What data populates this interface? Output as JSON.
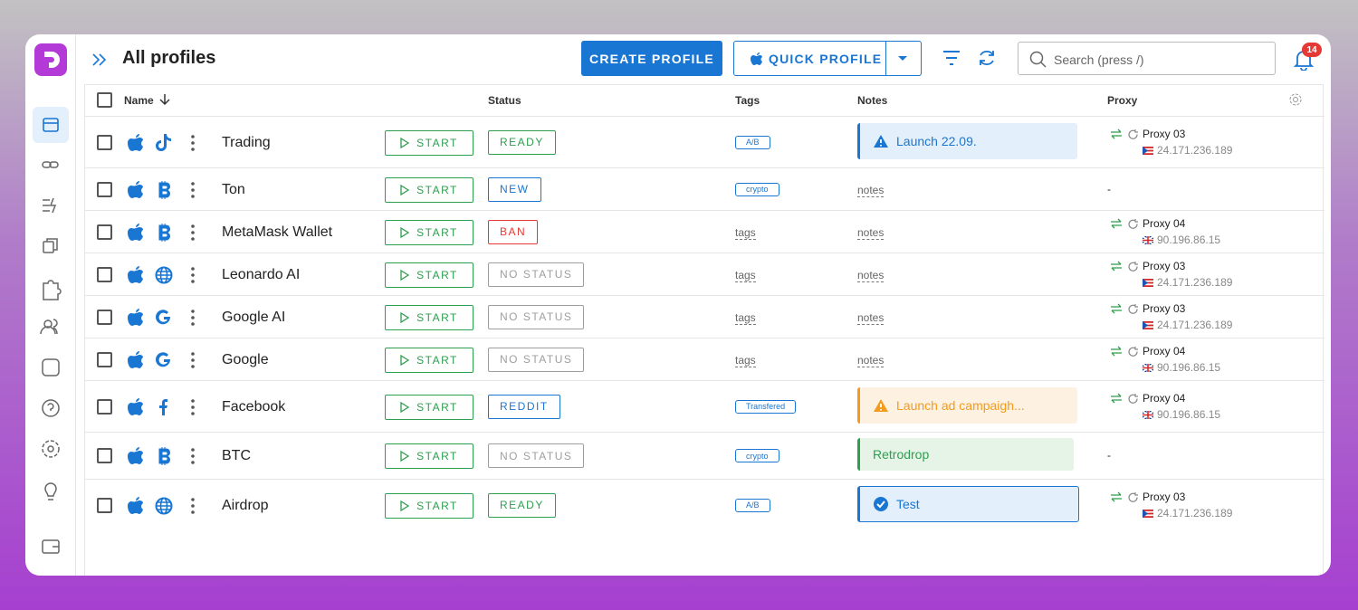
{
  "header": {
    "title": "All profiles",
    "create_button": "CREATE PROFILE",
    "quick_button": "QUICK PROFILE",
    "search_placeholder": "Search (press /)",
    "notification_count": 14
  },
  "table": {
    "columns": {
      "name": "Name",
      "status": "Status",
      "tags": "Tags",
      "notes": "Notes",
      "proxy": "Proxy"
    },
    "start_label": "START",
    "rows": [
      {
        "icon": "tiktok",
        "name": "Trading",
        "status": "READY",
        "status_color": "#2e9e4f",
        "tags": [
          "A/B"
        ],
        "note": {
          "text": "Launch 22.09.",
          "color": "#1976d2",
          "bg": "#e3f0fb",
          "icon": "warning"
        },
        "proxy": {
          "name": "Proxy 03",
          "ip": "24.171.236.189",
          "flag": "PR"
        }
      },
      {
        "icon": "bitcoin",
        "name": "Ton",
        "status": "NEW",
        "status_color": "#1976d2",
        "tags": [
          "crypto"
        ],
        "notes_placeholder": "notes",
        "proxy_empty": "-"
      },
      {
        "icon": "bitcoin",
        "name": "MetaMask Wallet",
        "status": "BAN",
        "status_color": "#e53935",
        "tags_placeholder": "tags",
        "notes_placeholder": "notes",
        "proxy": {
          "name": "Proxy 04",
          "ip": "90.196.86.15",
          "flag": "GB"
        }
      },
      {
        "icon": "globe",
        "name": "Leonardo AI",
        "status": "NO STATUS",
        "status_color": "#9e9e9e",
        "tags_placeholder": "tags",
        "notes_placeholder": "notes",
        "proxy": {
          "name": "Proxy 03",
          "ip": "24.171.236.189",
          "flag": "PR"
        }
      },
      {
        "icon": "google",
        "name": "Google AI",
        "status": "NO STATUS",
        "status_color": "#9e9e9e",
        "tags_placeholder": "tags",
        "notes_placeholder": "notes",
        "proxy": {
          "name": "Proxy 03",
          "ip": "24.171.236.189",
          "flag": "PR"
        }
      },
      {
        "icon": "google",
        "name": "Google",
        "status": "NO STATUS",
        "status_color": "#9e9e9e",
        "tags_placeholder": "tags",
        "notes_placeholder": "notes",
        "proxy": {
          "name": "Proxy 04",
          "ip": "90.196.86.15",
          "flag": "GB"
        }
      },
      {
        "icon": "facebook",
        "name": "Facebook",
        "status": "REDDIT",
        "status_color": "#1976d2",
        "tags": [
          "Transfered"
        ],
        "note": {
          "text": "Launch ad campaigh...",
          "color": "#f29b1d",
          "bg": "#fdf1e2",
          "icon": "warning"
        },
        "proxy": {
          "name": "Proxy 04",
          "ip": "90.196.86.15",
          "flag": "GB"
        }
      },
      {
        "icon": "bitcoin",
        "name": "BTC",
        "status": "NO STATUS",
        "status_color": "#9e9e9e",
        "tags": [
          "crypto"
        ],
        "note": {
          "text": "Retrodrop",
          "color": "#2e9e4f",
          "bg": "#e6f4e7"
        },
        "proxy_empty": "-"
      },
      {
        "icon": "globe",
        "name": "Airdrop",
        "status": "READY",
        "status_color": "#2e9e4f",
        "tags": [
          "A/B"
        ],
        "note": {
          "text": "Test",
          "color": "#1976d2",
          "bg": "#e3f0fb",
          "icon": "check",
          "selected": true
        },
        "proxy": {
          "name": "Proxy 03",
          "ip": "24.171.236.189",
          "flag": "PR"
        }
      }
    ]
  }
}
